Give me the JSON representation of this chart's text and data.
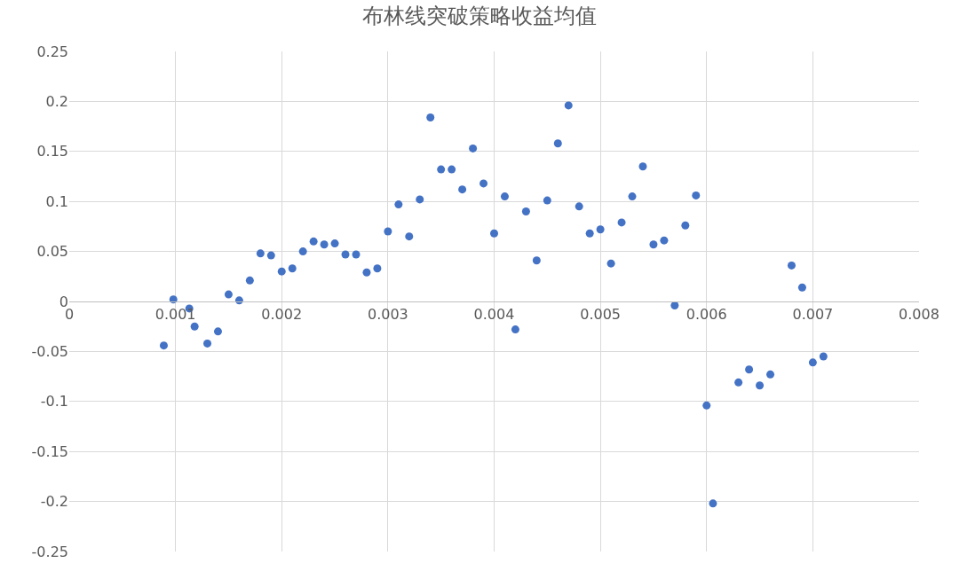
{
  "chart_data": {
    "type": "scatter",
    "title": "布林线突破策略收益均值",
    "x": [
      0.00089,
      0.00098,
      0.00113,
      0.00118,
      0.0013,
      0.0014,
      0.0015,
      0.0016,
      0.0017,
      0.0018,
      0.0019,
      0.002,
      0.0021,
      0.0022,
      0.0023,
      0.0024,
      0.0025,
      0.0026,
      0.0027,
      0.0028,
      0.0029,
      0.003,
      0.0031,
      0.0032,
      0.0033,
      0.0034,
      0.0035,
      0.0036,
      0.0037,
      0.0038,
      0.0039,
      0.004,
      0.0041,
      0.0042,
      0.0043,
      0.0044,
      0.0045,
      0.0046,
      0.0047,
      0.0048,
      0.0049,
      0.005,
      0.0051,
      0.0052,
      0.0053,
      0.0054,
      0.0055,
      0.0056,
      0.0057,
      0.0058,
      0.0059,
      0.006,
      0.00606,
      0.0063,
      0.0064,
      0.0065,
      0.0066,
      0.0068,
      0.0069,
      0.007,
      0.0071
    ],
    "series": [
      {
        "color": "#4472c4",
        "values": [
          -0.044,
          0.002,
          -0.007,
          -0.025,
          -0.042,
          -0.03,
          0.007,
          0.001,
          0.021,
          0.048,
          0.046,
          0.03,
          0.033,
          0.05,
          0.06,
          0.057,
          0.058,
          0.047,
          0.047,
          0.029,
          0.033,
          0.07,
          0.097,
          0.065,
          0.102,
          0.184,
          0.132,
          0.132,
          0.112,
          0.153,
          0.118,
          0.068,
          0.105,
          -0.028,
          0.09,
          0.041,
          0.101,
          0.158,
          0.196,
          0.095,
          0.068,
          0.072,
          0.038,
          0.079,
          0.105,
          0.135,
          0.057,
          0.061,
          -0.004,
          0.076,
          0.106,
          -0.104,
          -0.202,
          -0.081,
          -0.068,
          -0.084,
          -0.073,
          0.036,
          0.014,
          -0.061,
          -0.055
        ]
      }
    ],
    "xlim": [
      0,
      0.008
    ],
    "xticks": [
      0,
      0.001,
      0.002,
      0.003,
      0.004,
      0.005,
      0.006,
      0.007,
      0.008
    ],
    "ylim": [
      -0.25,
      0.25
    ],
    "yticks": [
      -0.25,
      -0.2,
      -0.15,
      -0.1,
      -0.05,
      0,
      0.05,
      0.1,
      0.15,
      0.2,
      0.25
    ],
    "grid": true,
    "marker": "circle"
  }
}
